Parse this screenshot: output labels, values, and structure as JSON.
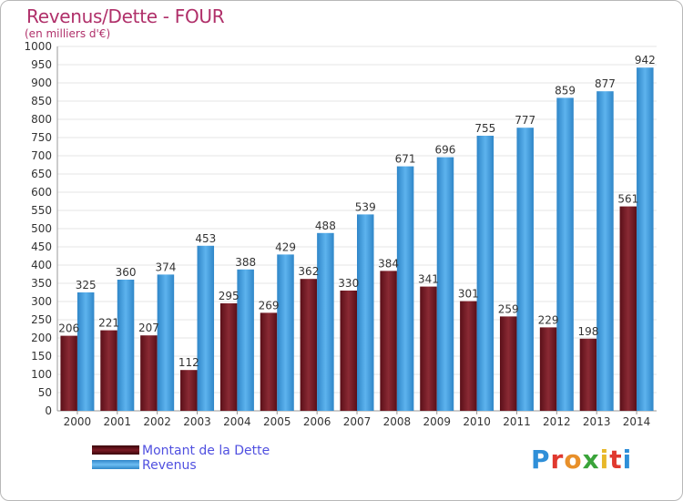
{
  "title": "Revenus/Dette - FOUR",
  "subtitle": "(en milliers d'€)",
  "logo_text": "Proxiti",
  "colors": {
    "title": "#b0306a",
    "dette": "#7a1a24",
    "revenus": "#4aa3e3",
    "grid": "#e6e6e6",
    "axis_text": "#333333",
    "legend_text": "#5050e0"
  },
  "chart_data": {
    "type": "bar",
    "title": "Revenus/Dette - FOUR",
    "subtitle": "(en milliers d'€)",
    "xlabel": "",
    "ylabel": "",
    "ylim": [
      0,
      1000
    ],
    "ytick_step": 50,
    "grid": true,
    "legend_position": "bottom-left",
    "categories": [
      "2000",
      "2001",
      "2002",
      "2003",
      "2004",
      "2005",
      "2006",
      "2007",
      "2008",
      "2009",
      "2010",
      "2011",
      "2012",
      "2013",
      "2014"
    ],
    "series": [
      {
        "name": "Montant de la Dette",
        "color": "#7a1a24",
        "values": [
          206,
          221,
          207,
          112,
          295,
          269,
          362,
          330,
          384,
          341,
          301,
          259,
          229,
          198,
          561
        ]
      },
      {
        "name": "Revenus",
        "color": "#4aa3e3",
        "values": [
          325,
          360,
          374,
          453,
          388,
          429,
          488,
          539,
          671,
          696,
          755,
          777,
          859,
          877,
          942
        ]
      }
    ]
  }
}
